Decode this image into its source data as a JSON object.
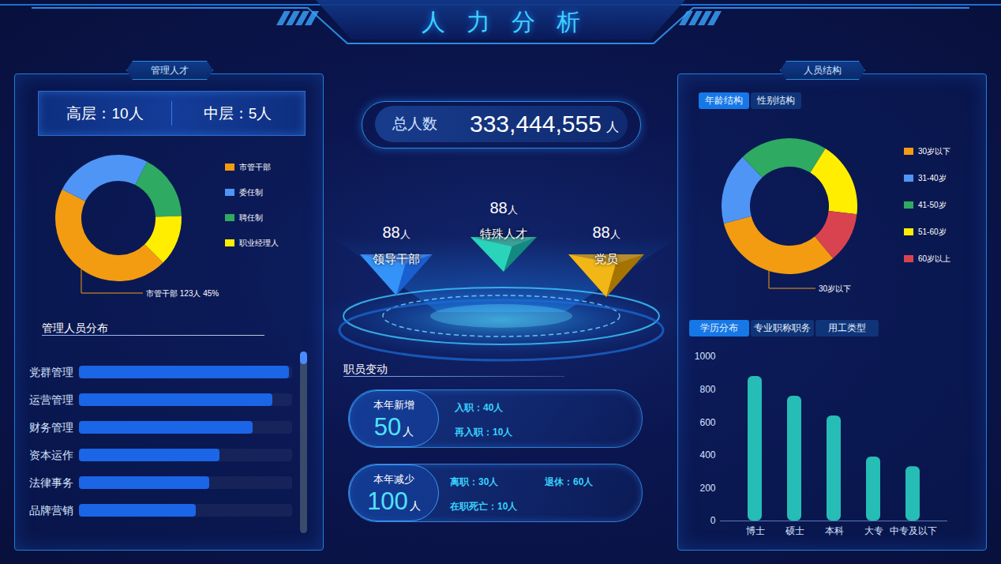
{
  "title": "人力分析",
  "left_panel": {
    "title": "管理人才",
    "summary": [
      "高层：10人",
      "中层：5人"
    ]
  },
  "center": {
    "total": {
      "label": "总人数",
      "value": 333444555,
      "unit": "人"
    },
    "groups": [
      {
        "value": 88,
        "unit": "人",
        "label": "领导干部"
      },
      {
        "value": 88,
        "unit": "人",
        "label": "特殊人才"
      },
      {
        "value": 88,
        "unit": "人",
        "label": "党员"
      }
    ],
    "changes": {
      "title": "职员变动",
      "items": [
        {
          "label": "本年新增",
          "value": 50,
          "unit": "人",
          "details": [
            "入职：40人",
            "再入职：10人"
          ]
        },
        {
          "label": "本年减少",
          "value": 100,
          "unit": "人",
          "details": [
            "离职：30人",
            "退休：60人",
            "在职死亡：10人"
          ]
        }
      ]
    }
  },
  "right_panel": {
    "title": "人员结构",
    "tabs_top": [
      "年龄结构",
      "性别结构"
    ],
    "tabs_bottom": [
      "学历分布",
      "专业职称职务",
      "用工类型"
    ]
  },
  "chart_data": [
    {
      "type": "pie",
      "categories": [
        "市管干部",
        "委任制",
        "聘任制",
        "职业经理人"
      ],
      "values": [
        45,
        25,
        17,
        13
      ],
      "colors": [
        "#f39c12",
        "#4f95f5",
        "#2eaa62",
        "#ffee00"
      ],
      "legend": "right",
      "annotation": "市管干部 123人 45%"
    },
    {
      "type": "bar",
      "title": "管理人员分布",
      "orientation": "horizontal",
      "categories": [
        "党群管理",
        "运营管理",
        "财务管理",
        "资本运作",
        "法律事务",
        "品牌营销"
      ],
      "values": [
        266,
        245,
        220,
        178,
        165,
        148
      ],
      "xlim": [
        0,
        270
      ],
      "color": "#1a66e6",
      "tick_labels": "y"
    },
    {
      "type": "pie",
      "categories": [
        "30岁以下",
        "31-40岁",
        "41-50岁",
        "51-60岁",
        "60岁以上"
      ],
      "values": [
        32,
        17,
        21,
        18,
        12
      ],
      "colors": [
        "#f39c12",
        "#4f95f5",
        "#2eaa62",
        "#ffee00",
        "#d9434f"
      ],
      "legend": "right",
      "annotation": "30岁以下"
    },
    {
      "type": "bar",
      "categories": [
        "博士",
        "硕士",
        "本科",
        "大专",
        "中专及以下"
      ],
      "values": [
        880,
        760,
        640,
        390,
        330
      ],
      "ylim": [
        0,
        1000
      ],
      "yticks": [
        0,
        200,
        400,
        600,
        800,
        1000
      ],
      "color": "#25bdb5"
    }
  ]
}
